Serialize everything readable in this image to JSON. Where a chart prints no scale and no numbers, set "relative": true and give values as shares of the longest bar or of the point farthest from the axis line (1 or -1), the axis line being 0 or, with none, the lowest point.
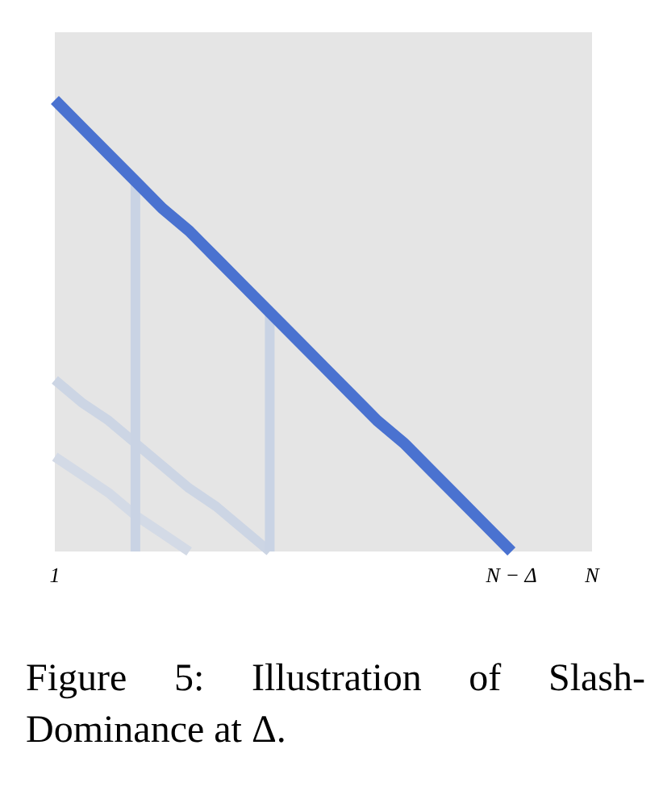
{
  "chart_data": {
    "type": "line",
    "relative": true,
    "categories": [
      "1",
      null,
      null,
      null,
      null,
      null,
      null,
      null,
      null,
      null,
      null,
      null,
      null,
      null,
      null,
      null,
      null,
      "N − Δ",
      null,
      null,
      "N"
    ],
    "series": [
      {
        "color": "#ccd5e4",
        "values": [
          0.38,
          0.33,
          0.29,
          0.24,
          0.19,
          0.14,
          0.1,
          0.05,
          0,
          null,
          null,
          null,
          null,
          null,
          null,
          null,
          null,
          null,
          null,
          null,
          null
        ]
      },
      {
        "color": "#d3dae6",
        "values": [
          0.21,
          0.17,
          0.13,
          0.08,
          0.04,
          0,
          null,
          null,
          null,
          null,
          null,
          null,
          null,
          null,
          null,
          null,
          null,
          null,
          null,
          null,
          null
        ]
      },
      {
        "type": "bar",
        "color": "#c9d3e4",
        "values": [
          null,
          null,
          null,
          0.82,
          null,
          null,
          null,
          null,
          0.53,
          null,
          null,
          null,
          null,
          null,
          null,
          null,
          null,
          null,
          null,
          null,
          null
        ]
      },
      {
        "color": "#4a72d0",
        "values": [
          1,
          0.94,
          0.88,
          0.82,
          0.76,
          0.71,
          0.65,
          0.59,
          0.53,
          0.47,
          0.41,
          0.35,
          0.29,
          0.24,
          0.18,
          0.12,
          0.06,
          0,
          null,
          null,
          null
        ]
      }
    ],
    "annotations": [
      "Figure 5:  Illustration of Slash-Dominance at Δ."
    ],
    "grid": false,
    "marker": "none",
    "line_style": "solid"
  }
}
